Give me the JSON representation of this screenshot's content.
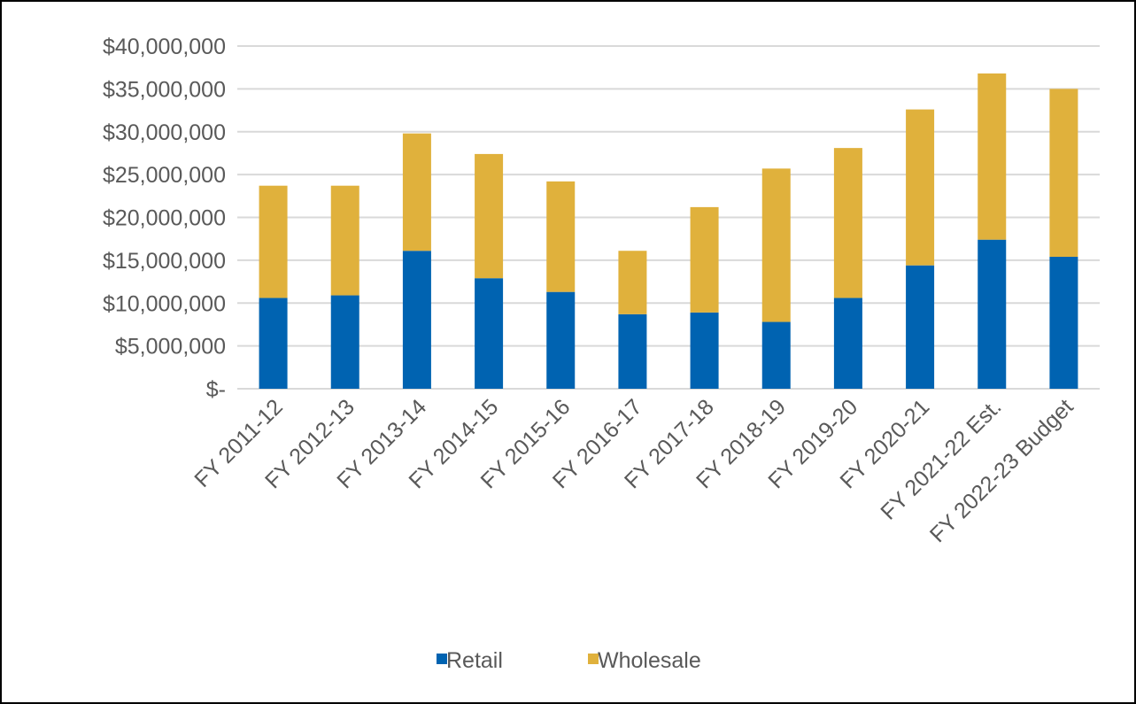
{
  "chart_data": {
    "type": "bar",
    "stacked": true,
    "title": "",
    "xlabel": "",
    "ylabel": "",
    "categories": [
      "FY 2011-12",
      "FY 2012-13",
      "FY 2013-14",
      "FY 2014-15",
      "FY 2015-16",
      "FY 2016-17",
      "FY 2017-18",
      "FY 2018-19",
      "FY 2019-20",
      "FY 2020-21",
      "FY 2021-22 Est.",
      "FY 2022-23 Budget"
    ],
    "series": [
      {
        "name": "Retail",
        "color": "#0063B1",
        "values": [
          10600000,
          10900000,
          16100000,
          12900000,
          11300000,
          8700000,
          8900000,
          7800000,
          10600000,
          14400000,
          17400000,
          15400000
        ]
      },
      {
        "name": "Wholesale",
        "color": "#E0B13C",
        "values": [
          13100000,
          12800000,
          13700000,
          14500000,
          12900000,
          7400000,
          12300000,
          17900000,
          17500000,
          18200000,
          19400000,
          19600000
        ]
      }
    ],
    "ylim": [
      0,
      40000000
    ],
    "yticks": [
      0,
      5000000,
      10000000,
      15000000,
      20000000,
      25000000,
      30000000,
      35000000,
      40000000
    ],
    "ytick_labels": [
      "$-",
      "$5,000,000",
      "$10,000,000",
      "$15,000,000",
      "$20,000,000",
      "$25,000,000",
      "$30,000,000",
      "$35,000,000",
      "$40,000,000"
    ],
    "grid": true,
    "legend": {
      "position": "bottom",
      "entries": [
        "Retail",
        "Wholesale"
      ]
    }
  }
}
